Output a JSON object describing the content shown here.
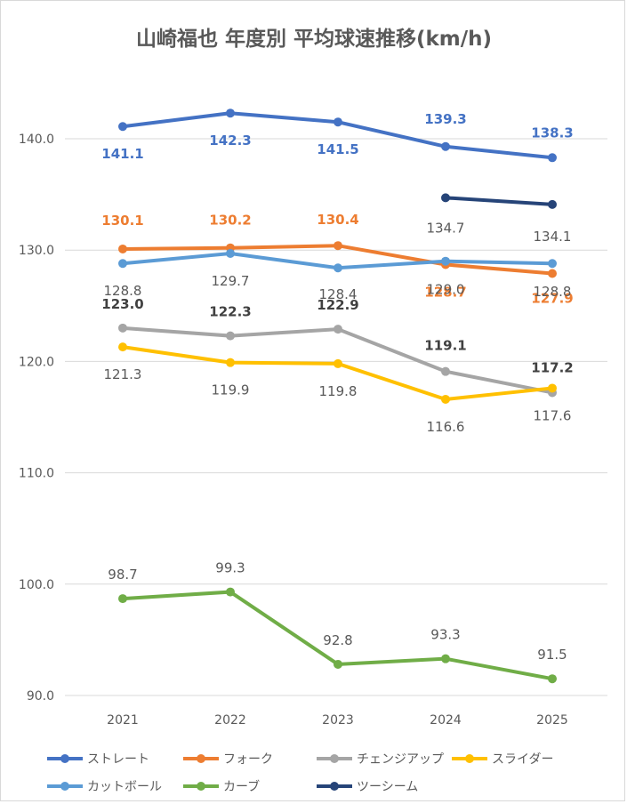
{
  "chart_data": {
    "type": "line",
    "title": "山崎福也 年度別 平均球速推移(km/h)",
    "xlabel": "",
    "ylabel": "",
    "categories": [
      "2021",
      "2022",
      "2023",
      "2024",
      "2025"
    ],
    "ylim": [
      90,
      140
    ],
    "yticks": [
      "140.0",
      "130.0",
      "120.0",
      "110.0",
      "100.0",
      "90.0"
    ],
    "grid": true,
    "legend_position": "bottom",
    "series": [
      {
        "name": "ストレート",
        "color": "#4472C4",
        "values": [
          141.1,
          142.3,
          141.5,
          139.3,
          138.3
        ],
        "labels": [
          "141.1",
          "142.3",
          "141.5",
          "139.3",
          "138.3"
        ]
      },
      {
        "name": "フォーク",
        "color": "#ED7D31",
        "values": [
          130.1,
          130.2,
          130.4,
          128.7,
          127.9
        ],
        "labels": [
          "130.1",
          "130.2",
          "130.4",
          "128.7",
          "127.9"
        ]
      },
      {
        "name": "チェンジアップ",
        "color": "#A5A5A5",
        "values": [
          123.0,
          122.3,
          122.9,
          119.1,
          117.2
        ],
        "labels": [
          "123.0",
          "122.3",
          "122.9",
          "119.1",
          "117.2"
        ]
      },
      {
        "name": "スライダー",
        "color": "#FFC000",
        "values": [
          121.3,
          119.9,
          119.8,
          116.6,
          117.6
        ],
        "labels": [
          "121.3",
          "119.9",
          "119.8",
          "116.6",
          "117.6"
        ]
      },
      {
        "name": "カットボール",
        "color": "#5B9BD5",
        "values": [
          128.8,
          129.7,
          128.4,
          129.0,
          128.8
        ],
        "labels": [
          "128.8",
          "129.7",
          "128.4",
          "129.0",
          "128.8"
        ]
      },
      {
        "name": "カーブ",
        "color": "#70AD47",
        "values": [
          98.7,
          99.3,
          92.8,
          93.3,
          91.5
        ],
        "labels": [
          "98.7",
          "99.3",
          "92.8",
          "93.3",
          "91.5"
        ]
      },
      {
        "name": "ツーシーム",
        "color": "#264478",
        "values": [
          null,
          null,
          null,
          134.7,
          134.1
        ],
        "labels": [
          null,
          null,
          null,
          "134.7",
          "134.1"
        ]
      }
    ]
  }
}
